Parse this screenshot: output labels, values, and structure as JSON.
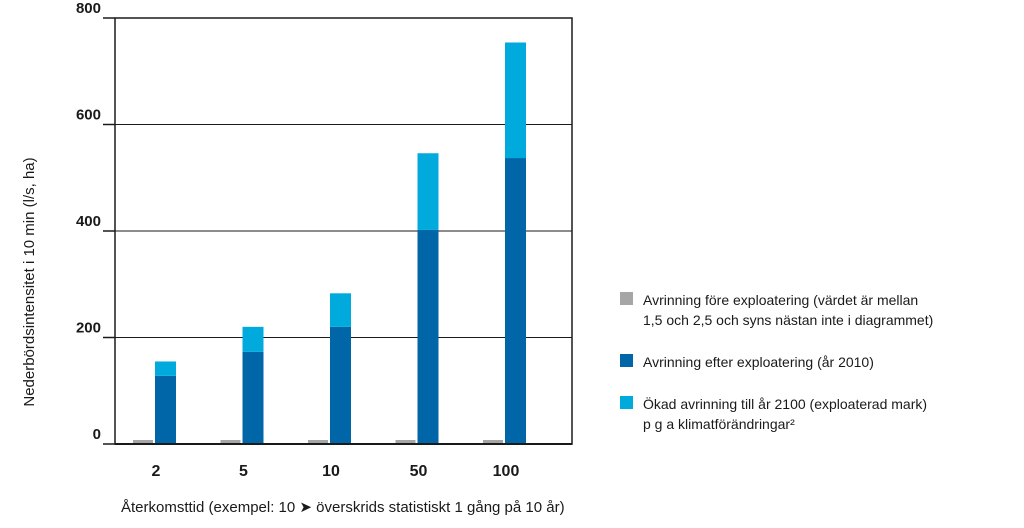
{
  "chart_data": {
    "type": "bar",
    "stacked": true,
    "categories": [
      "2",
      "5",
      "10",
      "50",
      "100"
    ],
    "ylim": [
      0,
      800
    ],
    "yticks": [
      0,
      200,
      400,
      600,
      800
    ],
    "ylabel": "Nederbördsintensitet i 10 min (l/s, ha)",
    "xlabel": "Återkomsttid (exempel: 10 ➤ överskrids statistiskt 1 gång på 10 år)",
    "grid": true,
    "legend_position": "right",
    "series": [
      {
        "name": "Avrinning före exploatering (värdet är mellan 1,5 och 2,5 och syns nästan inte i diagrammet)",
        "name_lines": [
          "Avrinning före exploatering (värdet är mellan",
          "1,5 och 2,5 och syns nästan inte i diagrammet)"
        ],
        "color": "#a6a6a6",
        "values": [
          2,
          2,
          2,
          2,
          2
        ]
      },
      {
        "name": "Avrinning efter exploatering (år 2010)",
        "name_lines": [
          "Avrinning efter exploatering (år 2010)"
        ],
        "color": "#0066a8",
        "values": [
          128,
          173,
          220,
          402,
          537
        ]
      },
      {
        "name": "Ökad avrinning till år 2100 (exploaterad mark) p g a klimatförändringar²",
        "name_lines": [
          "Ökad avrinning till år 2100 (exploaterad mark)",
          "p g a klimatförändringar²"
        ],
        "color": "#00aadd",
        "values": [
          27,
          47,
          63,
          144,
          217
        ]
      }
    ]
  }
}
